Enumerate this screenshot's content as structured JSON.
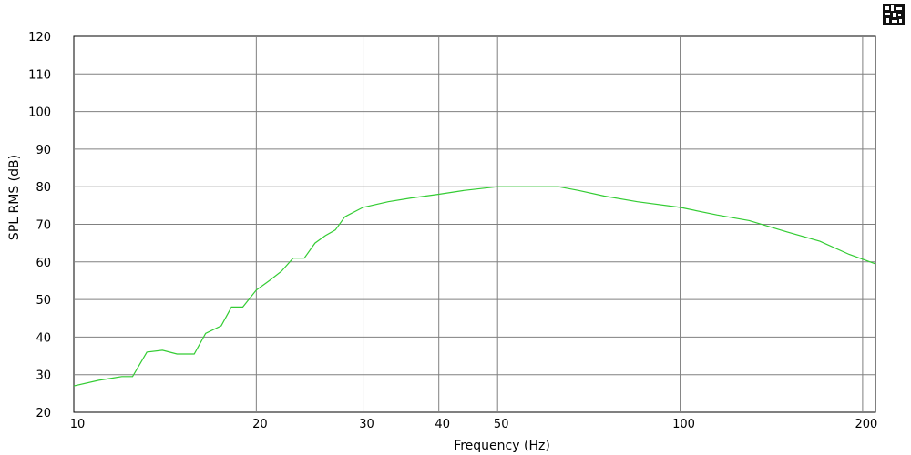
{
  "chart_data": {
    "type": "line",
    "xlabel": "Frequency (Hz)",
    "ylabel": "SPL RMS (dB)",
    "xscale": "log",
    "xlim": [
      10,
      210
    ],
    "ylim": [
      20,
      120
    ],
    "grid": true,
    "x_ticks": [
      10,
      20,
      30,
      40,
      50,
      100,
      200
    ],
    "x_tick_labels": [
      "10",
      "20",
      "30",
      "40",
      "50",
      "100",
      "200"
    ],
    "y_ticks": [
      20,
      30,
      40,
      50,
      60,
      70,
      80,
      90,
      100,
      110,
      120
    ],
    "y_tick_labels": [
      "20",
      "30",
      "40",
      "50",
      "60",
      "70",
      "80",
      "90",
      "100",
      "110",
      "120"
    ],
    "series": [
      {
        "color": "#33cc33",
        "x": [
          10,
          11,
          12,
          12.5,
          13.2,
          14,
          14.8,
          15.8,
          16.5,
          17.5,
          18.2,
          19,
          20,
          21,
          22,
          23,
          24,
          25,
          26,
          27,
          28,
          30,
          33,
          36,
          40,
          44,
          50,
          55,
          60,
          63,
          68,
          75,
          85,
          100,
          115,
          130,
          150,
          170,
          190,
          210
        ],
        "values": [
          27,
          28.5,
          29.5,
          29.5,
          36,
          36.5,
          35.5,
          35.5,
          41,
          43,
          48,
          48,
          52.5,
          55,
          57.5,
          61,
          61,
          65,
          67,
          68.5,
          72,
          74.5,
          76,
          77,
          78,
          79,
          80,
          80,
          80,
          80,
          79,
          77.5,
          76,
          74.5,
          72.5,
          71,
          68,
          65.5,
          62,
          59.5
        ]
      }
    ]
  },
  "logo": {
    "icon": "corner-logo-icon"
  }
}
